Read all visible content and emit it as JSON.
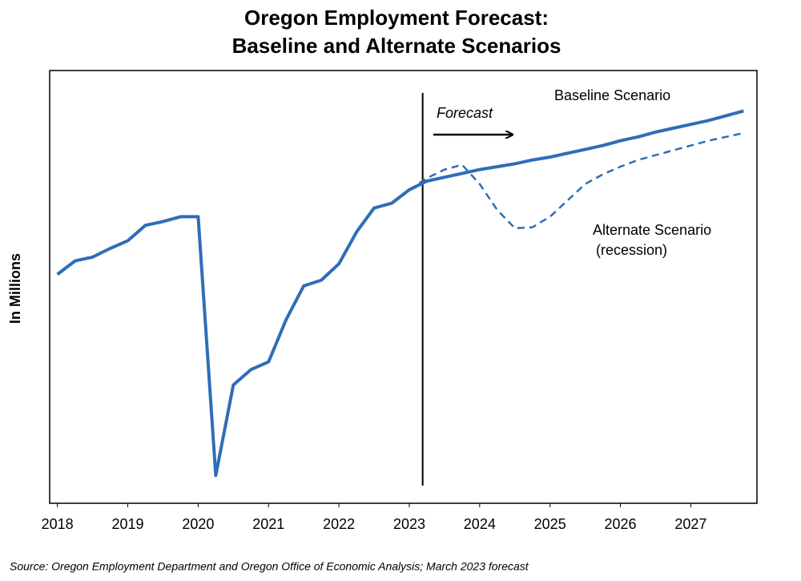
{
  "chart_data": {
    "type": "line",
    "title": [
      "Oregon Employment Forecast:",
      "Baseline and Alternate Scenarios"
    ],
    "ylabel": "In Millions",
    "source": "Source: Oregon Employment Department and Oregon Office of Economic Analysis; March 2023 forecast",
    "forecast_label": "Forecast",
    "forecast_start": 2023.19,
    "annotations": [
      "(recession)"
    ],
    "x": [
      2018,
      2018.25,
      2018.5,
      2018.75,
      2019,
      2019.25,
      2019.5,
      2019.75,
      2020,
      2020.25,
      2020.5,
      2020.75,
      2021,
      2021.25,
      2021.5,
      2021.75,
      2022,
      2022.25,
      2022.5,
      2022.75,
      2023,
      2023.25,
      2023.5,
      2023.75,
      2024,
      2024.25,
      2024.5,
      2024.75,
      2025,
      2025.25,
      2025.5,
      2025.75,
      2026,
      2026.25,
      2026.5,
      2026.75,
      2027,
      2027.25,
      2027.5,
      2027.75
    ],
    "series": [
      {
        "name": "Baseline Scenario",
        "color": "#2f6db7",
        "dashed": false,
        "values": [
          1.888,
          1.902,
          1.906,
          1.915,
          1.923,
          1.939,
          1.943,
          1.948,
          1.948,
          1.679,
          1.773,
          1.789,
          1.797,
          1.841,
          1.876,
          1.882,
          1.899,
          1.932,
          1.957,
          1.962,
          1.976,
          1.985,
          1.989,
          1.993,
          1.997,
          2.0,
          2.003,
          2.007,
          2.01,
          2.014,
          2.018,
          2.022,
          2.027,
          2.031,
          2.036,
          2.04,
          2.044,
          2.048,
          2.053,
          2.058
        ]
      },
      {
        "name": "Alternate Scenario",
        "color": "#2f6db7",
        "dashed": true,
        "values": [
          null,
          null,
          null,
          null,
          null,
          null,
          null,
          null,
          null,
          null,
          null,
          null,
          null,
          null,
          null,
          null,
          null,
          null,
          null,
          null,
          1.976,
          1.988,
          1.997,
          2.002,
          1.982,
          1.955,
          1.936,
          1.937,
          1.948,
          1.965,
          1.982,
          1.992,
          2.0,
          2.007,
          2.012,
          2.017,
          2.022,
          2.027,
          2.031,
          2.035
        ]
      }
    ],
    "xlim": [
      2017.89,
      2027.94
    ],
    "xticks": [
      2018,
      2019,
      2020,
      2021,
      2022,
      2023,
      2024,
      2025,
      2026,
      2027
    ],
    "ylim": [
      1.65,
      2.1
    ],
    "grid": false
  }
}
